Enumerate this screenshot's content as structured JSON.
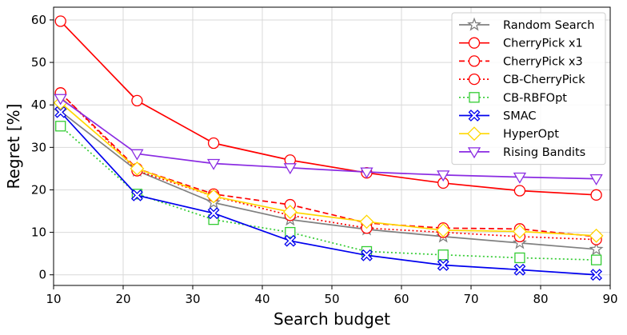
{
  "chart_data": {
    "type": "line",
    "title": "",
    "xlabel": "Search budget",
    "ylabel": "Regret [%]",
    "xlim": [
      10,
      90
    ],
    "ylim": [
      -2.5,
      63
    ],
    "xticks": [
      10,
      20,
      30,
      40,
      50,
      60,
      70,
      80,
      90
    ],
    "yticks": [
      0,
      10,
      20,
      30,
      40,
      50,
      60
    ],
    "grid": true,
    "legend_position": "top-right",
    "x": [
      11,
      22,
      33,
      44,
      55,
      66,
      77,
      88
    ],
    "series": [
      {
        "name": "Random Search",
        "values": [
          38.5,
          24.5,
          17,
          13,
          10.7,
          9,
          7.5,
          6
        ],
        "color": "#808080",
        "linestyle": "solid",
        "marker": "star"
      },
      {
        "name": "CherryPick x1",
        "values": [
          59.7,
          41,
          31,
          27,
          24,
          21.6,
          19.8,
          18.8
        ],
        "color": "#ff0000",
        "linestyle": "solid",
        "marker": "circle"
      },
      {
        "name": "CherryPick x3",
        "values": [
          42.8,
          25,
          19,
          16.5,
          12.2,
          11,
          10.8,
          9
        ],
        "color": "#ff0000",
        "linestyle": "dashed",
        "marker": "circle"
      },
      {
        "name": "CB-CherryPick",
        "values": [
          42.8,
          24.5,
          18.5,
          14,
          11,
          10,
          9,
          8.3
        ],
        "color": "#ff0000",
        "linestyle": "dotted",
        "marker": "circle"
      },
      {
        "name": "CB-RBFOpt",
        "values": [
          35,
          19,
          13,
          10,
          5.5,
          4.7,
          4,
          3.5
        ],
        "color": "#33cc33",
        "linestyle": "dotted",
        "marker": "square"
      },
      {
        "name": "SMAC",
        "values": [
          38.3,
          18.7,
          14.5,
          8,
          4.6,
          2.3,
          1.2,
          0
        ],
        "color": "#0000ee",
        "linestyle": "solid",
        "marker": "x"
      },
      {
        "name": "HyperOpt",
        "values": [
          40.5,
          25,
          18.5,
          14.8,
          12.5,
          10.5,
          10.2,
          9.2
        ],
        "color": "#ffd700",
        "linestyle": "solid",
        "marker": "diamond"
      },
      {
        "name": "Rising Bandits",
        "values": [
          41.5,
          28.5,
          26.2,
          25.2,
          24.2,
          23.5,
          23,
          22.6
        ],
        "color": "#8a2be2",
        "linestyle": "solid",
        "marker": "triangle-down"
      }
    ]
  }
}
